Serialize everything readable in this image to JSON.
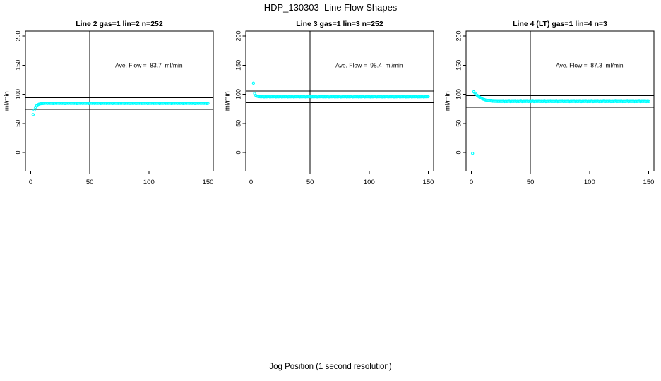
{
  "page": {
    "main_title": "HDP_130303  Line Flow Shapes",
    "x_axis_label": "Jog Position (1 second resolution)"
  },
  "colors": {
    "points": "#00FFFF",
    "axis": "#000000",
    "background": "#FFFFFF"
  },
  "chart_data": [
    {
      "type": "scatter",
      "title": "Line 2 gas=1 lin=2 n=252",
      "ylabel": "ml/min",
      "xlim": [
        0,
        150
      ],
      "ylim": [
        0,
        200
      ],
      "x_ticks": [
        0,
        50,
        100,
        150
      ],
      "y_ticks": [
        0,
        50,
        100,
        150,
        200
      ],
      "grid": false,
      "legend": "none",
      "ave_flow": 83.7,
      "annotation": "Ave. Flow =  83.7  ml/min",
      "annotation_pos": [
        100,
        150
      ],
      "vline_x": 50,
      "hlines": [
        93.7,
        73.7
      ],
      "x_start": 2,
      "x_step": 1,
      "y_values": [
        65.0,
        72.9,
        77.5,
        80.2,
        81.9,
        82.8,
        83.4,
        83.7,
        83.9,
        84.0,
        84.2,
        84.4,
        84.0,
        84.3,
        84.1,
        84.2,
        84.5,
        83.9,
        84.2,
        84.3,
        84.2,
        84.4,
        84.0,
        84.3,
        84.1,
        84.2,
        84.5,
        83.9,
        84.2,
        84.3,
        84.2,
        84.4,
        84.0,
        84.3,
        84.1,
        84.2,
        84.5,
        83.9,
        84.2,
        84.3,
        84.2,
        84.4,
        84.0,
        84.3,
        84.1,
        84.2,
        84.5,
        83.9,
        84.2,
        84.3,
        84.2,
        84.4,
        84.0,
        84.3,
        84.1,
        84.2,
        84.5,
        83.9,
        84.2,
        84.3,
        84.2,
        84.4,
        84.0,
        84.3,
        84.1,
        84.2,
        84.5,
        83.9,
        84.2,
        84.3,
        84.2,
        84.4,
        84.0,
        84.3,
        84.1,
        84.2,
        84.5,
        83.9,
        84.2,
        84.3,
        84.2,
        84.4,
        84.0,
        84.3,
        84.1,
        84.2,
        84.5,
        83.9,
        84.2,
        84.3,
        84.2,
        84.4,
        84.0,
        84.3,
        84.1,
        84.2,
        84.5,
        83.9,
        84.2,
        84.3,
        84.2,
        84.4,
        84.0,
        84.3,
        84.1,
        84.2,
        84.5,
        83.9,
        84.2,
        84.3,
        84.2,
        84.4,
        84.0,
        84.3,
        84.1,
        84.2,
        84.5,
        83.9,
        84.2,
        84.3,
        84.2,
        84.4,
        84.0,
        84.3,
        84.1,
        84.2,
        84.5,
        83.9,
        84.2,
        84.3,
        84.2,
        84.4,
        84.0,
        84.3,
        84.1,
        84.2,
        84.5,
        83.9,
        84.2,
        84.3,
        84.2,
        84.4,
        84.0,
        84.3,
        84.1,
        84.2,
        84.5,
        83.9,
        84.2
      ]
    },
    {
      "type": "scatter",
      "title": "Line 3 gas=1 lin=3 n=252",
      "ylabel": "ml/min",
      "xlim": [
        0,
        150
      ],
      "ylim": [
        0,
        200
      ],
      "x_ticks": [
        0,
        50,
        100,
        150
      ],
      "y_ticks": [
        0,
        50,
        100,
        150,
        200
      ],
      "grid": false,
      "legend": "none",
      "ave_flow": 95.4,
      "annotation": "Ave. Flow =  95.4  ml/min",
      "annotation_pos": [
        100,
        150
      ],
      "vline_x": 50,
      "hlines": [
        105.4,
        85.4
      ],
      "x_start": 2,
      "x_step": 1,
      "y_values": [
        119.0,
        101.4,
        98.0,
        96.7,
        96.1,
        95.8,
        95.7,
        95.6,
        95.8,
        95.4,
        95.7,
        95.5,
        95.6,
        95.9,
        95.3,
        95.6,
        95.7,
        95.6,
        95.8,
        95.4,
        95.7,
        95.5,
        95.6,
        95.9,
        95.3,
        95.6,
        95.7,
        95.6,
        95.8,
        95.4,
        95.7,
        95.5,
        95.6,
        95.9,
        95.3,
        95.6,
        95.7,
        95.6,
        95.8,
        95.4,
        95.7,
        95.5,
        95.6,
        95.9,
        95.3,
        95.6,
        95.7,
        95.6,
        95.8,
        95.4,
        95.7,
        95.5,
        95.6,
        95.9,
        95.3,
        95.6,
        95.7,
        95.6,
        95.8,
        95.4,
        95.7,
        95.5,
        95.6,
        95.9,
        95.3,
        95.6,
        95.7,
        95.6,
        95.8,
        95.4,
        95.7,
        95.5,
        95.6,
        95.9,
        95.3,
        95.6,
        95.7,
        95.6,
        95.8,
        95.4,
        95.7,
        95.5,
        95.6,
        95.9,
        95.3,
        95.6,
        95.7,
        95.6,
        95.8,
        95.4,
        95.7,
        95.5,
        95.6,
        95.9,
        95.3,
        95.6,
        95.7,
        95.6,
        95.8,
        95.4,
        95.7,
        95.5,
        95.6,
        95.9,
        95.3,
        95.6,
        95.7,
        95.6,
        95.8,
        95.4,
        95.7,
        95.5,
        95.6,
        95.9,
        95.3,
        95.6,
        95.7,
        95.6,
        95.8,
        95.4,
        95.7,
        95.5,
        95.6,
        95.9,
        95.3,
        95.6,
        95.7,
        95.6,
        95.8,
        95.4,
        95.7,
        95.5,
        95.6,
        95.9,
        95.3,
        95.6,
        95.7,
        95.6,
        95.8,
        95.4,
        95.7,
        95.5,
        95.6,
        95.9,
        95.3,
        95.6,
        95.7,
        95.6,
        95.8
      ]
    },
    {
      "type": "scatter",
      "title": "Line 4 (LT) gas=1 lin=4 n=3",
      "ylabel": "ml/min",
      "xlim": [
        0,
        150
      ],
      "ylim": [
        0,
        200
      ],
      "x_ticks": [
        0,
        50,
        100,
        150
      ],
      "y_ticks": [
        0,
        50,
        100,
        150,
        200
      ],
      "grid": false,
      "legend": "none",
      "ave_flow": 87.3,
      "annotation": "Ave. Flow =  87.3  ml/min",
      "annotation_pos": [
        100,
        150
      ],
      "vline_x": 50,
      "hlines": [
        97.3,
        77.3
      ],
      "x_start": 1,
      "x_step": 1,
      "y_values": [
        -1.5,
        104.2,
        102.2,
        100.0,
        98.0,
        96.3,
        94.8,
        93.5,
        92.4,
        91.5,
        90.8,
        90.1,
        89.6,
        89.1,
        88.8,
        88.5,
        88.2,
        88.0,
        87.9,
        87.8,
        87.8,
        87.7,
        87.7,
        87.6,
        87.6,
        87.6,
        87.8,
        87.4,
        87.7,
        87.5,
        87.6,
        87.9,
        87.3,
        87.6,
        87.7,
        87.6,
        87.8,
        87.4,
        87.7,
        87.5,
        87.6,
        87.9,
        87.3,
        87.6,
        87.7,
        87.6,
        87.8,
        87.4,
        87.7,
        87.5,
        87.6,
        87.9,
        87.3,
        87.6,
        87.7,
        87.6,
        87.8,
        87.4,
        87.7,
        87.5,
        87.6,
        87.9,
        87.3,
        87.6,
        87.7,
        87.6,
        87.8,
        87.4,
        87.7,
        87.5,
        87.6,
        87.9,
        87.3,
        87.6,
        87.7,
        87.6,
        87.8,
        87.4,
        87.7,
        87.5,
        87.6,
        87.9,
        87.3,
        87.6,
        87.7,
        87.6,
        87.8,
        87.4,
        87.7,
        87.5,
        87.6,
        87.9,
        87.3,
        87.6,
        87.7,
        87.6,
        87.8,
        87.4,
        87.7,
        87.5,
        87.6,
        87.9,
        87.3,
        87.6,
        87.7,
        87.6,
        87.8,
        87.4,
        87.7,
        87.5,
        87.6,
        87.9,
        87.3,
        87.6,
        87.7,
        87.6,
        87.8,
        87.4,
        87.7,
        87.5,
        87.6,
        87.9,
        87.3,
        87.6,
        87.7,
        87.6,
        87.8,
        87.4,
        87.7,
        87.5,
        87.6,
        87.9,
        87.3,
        87.6,
        87.7,
        87.6,
        87.8,
        87.4,
        87.7,
        87.5,
        87.6,
        87.9,
        87.3,
        87.6,
        87.7,
        87.6,
        87.8,
        87.4,
        87.7,
        87.5
      ]
    }
  ]
}
